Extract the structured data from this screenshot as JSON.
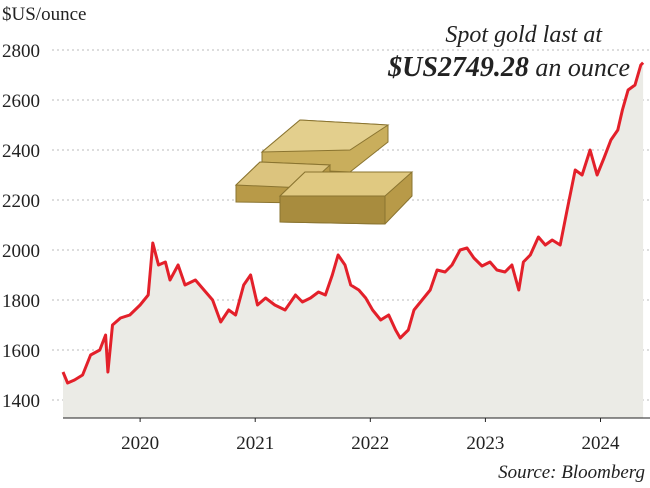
{
  "chart_data": {
    "type": "line",
    "y_label": "$US/ounce",
    "annotation": [
      "Spot gold last at",
      "$US2749.28",
      "an ounce"
    ],
    "source": "Source: Bloomberg",
    "x": [
      2019.83,
      2019.87,
      2019.93,
      2020.0,
      2020.07,
      2020.15,
      2020.2,
      2020.22,
      2020.26,
      2020.33,
      2020.41,
      2020.5,
      2020.57,
      2020.61,
      2020.66,
      2020.72,
      2020.76,
      2020.83,
      2020.89,
      2020.98,
      2021.07,
      2021.13,
      2021.2,
      2021.27,
      2021.33,
      2021.4,
      2021.46,
      2021.52,
      2021.59,
      2021.67,
      2021.76,
      2021.85,
      2021.91,
      2021.98,
      2022.05,
      2022.11,
      2022.17,
      2022.22,
      2022.28,
      2022.33,
      2022.4,
      2022.46,
      2022.52,
      2022.59,
      2022.66,
      2022.72,
      2022.76,
      2022.83,
      2022.88,
      2022.95,
      2023.02,
      2023.08,
      2023.15,
      2023.21,
      2023.28,
      2023.34,
      2023.4,
      2023.47,
      2023.54,
      2023.6,
      2023.67,
      2023.73,
      2023.79,
      2023.83,
      2023.89,
      2023.96,
      2024.02,
      2024.08,
      2024.15,
      2024.21,
      2024.28,
      2024.34,
      2024.41,
      2024.47,
      2024.53,
      2024.59,
      2024.65,
      2024.69,
      2024.74,
      2024.8,
      2024.85,
      2024.87
    ],
    "values": [
      1512,
      1468,
      1480,
      1500,
      1580,
      1600,
      1660,
      1512,
      1700,
      1728,
      1740,
      1780,
      1820,
      2028,
      1940,
      1952,
      1880,
      1940,
      1860,
      1880,
      1832,
      1800,
      1712,
      1760,
      1740,
      1860,
      1900,
      1780,
      1808,
      1780,
      1760,
      1820,
      1792,
      1808,
      1832,
      1820,
      1900,
      1980,
      1940,
      1860,
      1840,
      1808,
      1760,
      1720,
      1740,
      1680,
      1648,
      1680,
      1760,
      1800,
      1840,
      1920,
      1912,
      1940,
      2000,
      2008,
      1968,
      1936,
      1952,
      1920,
      1912,
      1940,
      1840,
      1952,
      1980,
      2052,
      2020,
      2040,
      2020,
      2160,
      2320,
      2300,
      2400,
      2300,
      2368,
      2440,
      2480,
      2560,
      2640,
      2660,
      2740,
      2749.28
    ],
    "color": "#e3202a",
    "area_color": "#ebebe6",
    "xlim": [
      2019.83,
      2024.93
    ],
    "xticks": [
      {
        "value": 2020.5,
        "label": "2020"
      },
      {
        "value": 2021.5,
        "label": "2021"
      },
      {
        "value": 2022.5,
        "label": "2022"
      },
      {
        "value": 2023.5,
        "label": "2023"
      },
      {
        "value": 2024.5,
        "label": "2024"
      }
    ],
    "ylim": [
      1328,
      2840
    ],
    "yticks": [
      1400,
      1600,
      1800,
      2000,
      2200,
      2400,
      2600,
      2800
    ],
    "grid": true
  }
}
